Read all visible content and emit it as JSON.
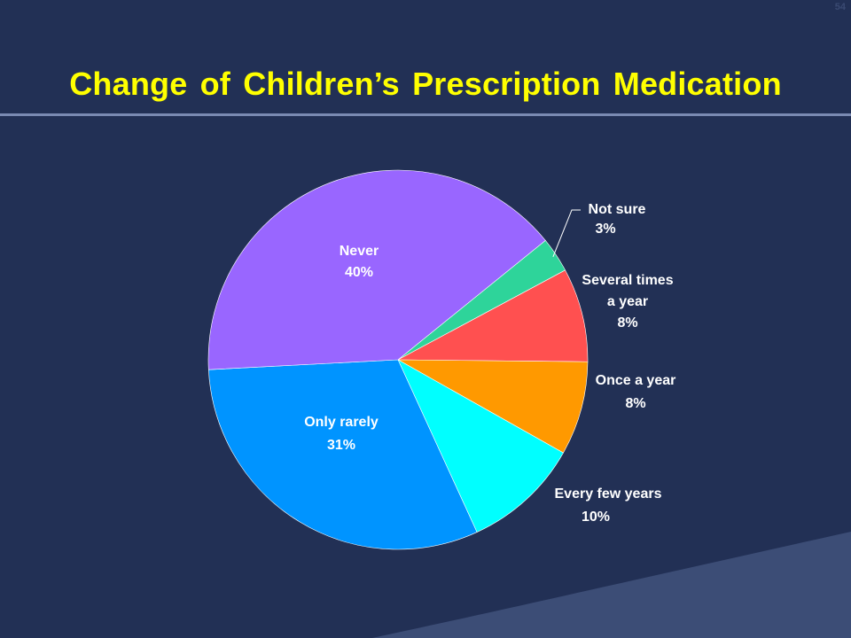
{
  "slide": {
    "page_number": "54",
    "title": "Change of Children’s Prescription Medication",
    "colors": {
      "background": "#223055",
      "title": "#ffff00",
      "rule": "#7a8ab2"
    }
  },
  "chart_data": {
    "type": "pie",
    "start_angle_deg": 51,
    "direction": "clockwise",
    "slices": [
      {
        "label": "Not sure",
        "label_lines": [
          "Not sure"
        ],
        "value": 3,
        "value_text": "3%",
        "color": "#2ed49a",
        "label_color": "#ffffff"
      },
      {
        "label": "Several times a year",
        "label_lines": [
          "Several times",
          "a year"
        ],
        "value": 8,
        "value_text": "8%",
        "color": "#ff5050",
        "label_color": "#ffffff"
      },
      {
        "label": "Once a year",
        "label_lines": [
          "Once a year"
        ],
        "value": 8,
        "value_text": "8%",
        "color": "#ff9900",
        "label_color": "#ffffff"
      },
      {
        "label": "Every few years",
        "label_lines": [
          "Every few years"
        ],
        "value": 10,
        "value_text": "10%",
        "color": "#00ffff",
        "label_color": "#ffffff"
      },
      {
        "label": "Only rarely",
        "label_lines": [
          "Only rarely"
        ],
        "value": 31,
        "value_text": "31%",
        "color": "#0094ff",
        "label_color": "#ffffff"
      },
      {
        "label": "Never",
        "label_lines": [
          "Never"
        ],
        "value": 40,
        "value_text": "40%",
        "color": "#9966ff",
        "label_color": "#ffffff"
      }
    ]
  }
}
